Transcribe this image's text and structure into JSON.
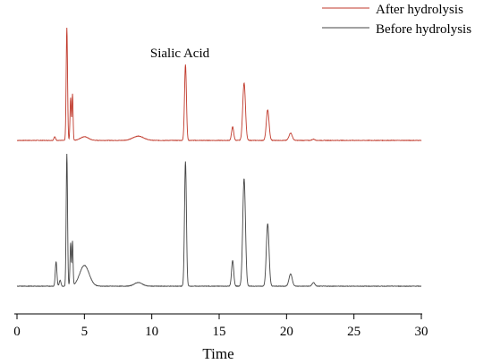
{
  "chart_data": {
    "type": "line",
    "xlabel": "Time",
    "ylabel": "",
    "xlim": [
      0,
      30
    ],
    "xticks": [
      0,
      5,
      10,
      15,
      20,
      25,
      30
    ],
    "grid": false,
    "legend": "top-right",
    "annotations": [
      {
        "text": "Sialic Acid",
        "x": 12.5
      }
    ],
    "series": [
      {
        "name": "After hydrolysis",
        "color": "#c0392b",
        "baseline": 0.02,
        "noise": 0.004,
        "peaks": [
          {
            "x": 2.8,
            "height": 0.03,
            "width": 0.06
          },
          {
            "x": 3.7,
            "height": 0.92,
            "width": 0.05
          },
          {
            "x": 3.98,
            "height": 0.35,
            "width": 0.045
          },
          {
            "x": 4.12,
            "height": 0.38,
            "width": 0.04
          },
          {
            "x": 5.0,
            "height": 0.03,
            "width": 0.3
          },
          {
            "x": 9.0,
            "height": 0.035,
            "width": 0.4
          },
          {
            "x": 12.5,
            "height": 0.62,
            "width": 0.07
          },
          {
            "x": 16.0,
            "height": 0.11,
            "width": 0.08
          },
          {
            "x": 16.85,
            "height": 0.47,
            "width": 0.1
          },
          {
            "x": 18.6,
            "height": 0.25,
            "width": 0.1
          },
          {
            "x": 20.3,
            "height": 0.06,
            "width": 0.12
          },
          {
            "x": 22.0,
            "height": 0.01,
            "width": 0.1
          }
        ]
      },
      {
        "name": "Before hydrolysis",
        "color": "#444444",
        "baseline": 0.02,
        "noise": 0.004,
        "peaks": [
          {
            "x": 2.9,
            "height": 0.2,
            "width": 0.06
          },
          {
            "x": 3.2,
            "height": 0.05,
            "width": 0.06
          },
          {
            "x": 3.7,
            "height": 1.08,
            "width": 0.05
          },
          {
            "x": 3.98,
            "height": 0.35,
            "width": 0.045
          },
          {
            "x": 4.12,
            "height": 0.36,
            "width": 0.04
          },
          {
            "x": 5.0,
            "height": 0.17,
            "width": 0.35
          },
          {
            "x": 9.0,
            "height": 0.03,
            "width": 0.3
          },
          {
            "x": 12.5,
            "height": 1.02,
            "width": 0.07
          },
          {
            "x": 16.0,
            "height": 0.21,
            "width": 0.08
          },
          {
            "x": 16.85,
            "height": 0.88,
            "width": 0.1
          },
          {
            "x": 18.6,
            "height": 0.51,
            "width": 0.1
          },
          {
            "x": 20.3,
            "height": 0.1,
            "width": 0.12
          },
          {
            "x": 22.0,
            "height": 0.03,
            "width": 0.1
          }
        ]
      }
    ]
  }
}
